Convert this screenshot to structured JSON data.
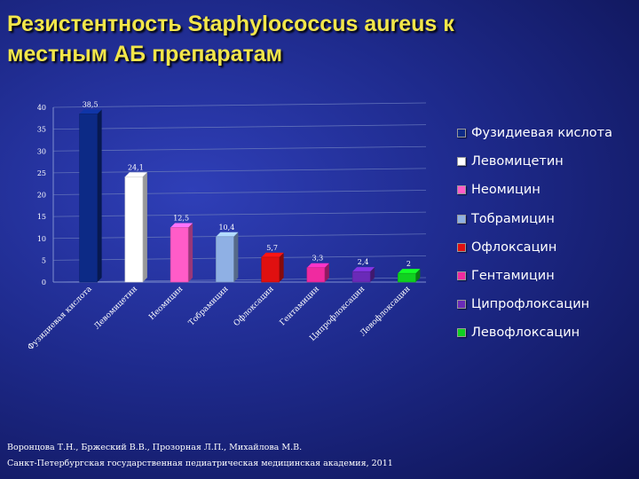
{
  "title_lines": [
    "Резистентность  Staphylococcus aureus к",
    "местным АБ препаратам"
  ],
  "source_lines": [
    "Воронцова Т.Н., Бржеский В.В., Прозорная Л.П., Михайлова М.В.",
    "Санкт-Петербургская государственная педиатрическая медицинская академия, 2011"
  ],
  "chart_data": {
    "type": "bar",
    "categories": [
      "Фузидиевая кислота",
      "Левомицетин",
      "Неомицин",
      "Тобрамицин",
      "Офлоксацин",
      "Гентамицин",
      "Ципрофлоксацин",
      "Левофлоксацин"
    ],
    "values": [
      38.5,
      24.1,
      12.5,
      10.4,
      5.7,
      3.3,
      2.4,
      2
    ],
    "value_labels": [
      "38,5",
      "24,1",
      "12,5",
      "10,4",
      "5,7",
      "3,3",
      "2,4",
      "2"
    ],
    "colors": [
      "#0c2a86",
      "#ffffff",
      "#ff5cc8",
      "#8fb0e4",
      "#e01010",
      "#f02aa0",
      "#6a2ab8",
      "#10d020"
    ],
    "ylim": [
      0,
      40
    ],
    "yticks": [
      "0",
      "5",
      "10",
      "15",
      "20",
      "25",
      "30",
      "35",
      "40"
    ],
    "grid": true,
    "legend": {
      "position": "right",
      "items": [
        "Фузидиевая кислота",
        "Левомицетин",
        "Неомицин",
        "Тобрамицин",
        "Офлоксацин",
        "Гентамицин",
        "Ципрофлоксацин",
        "Левофлоксацин"
      ]
    },
    "xlabel": "",
    "ylabel": ""
  }
}
